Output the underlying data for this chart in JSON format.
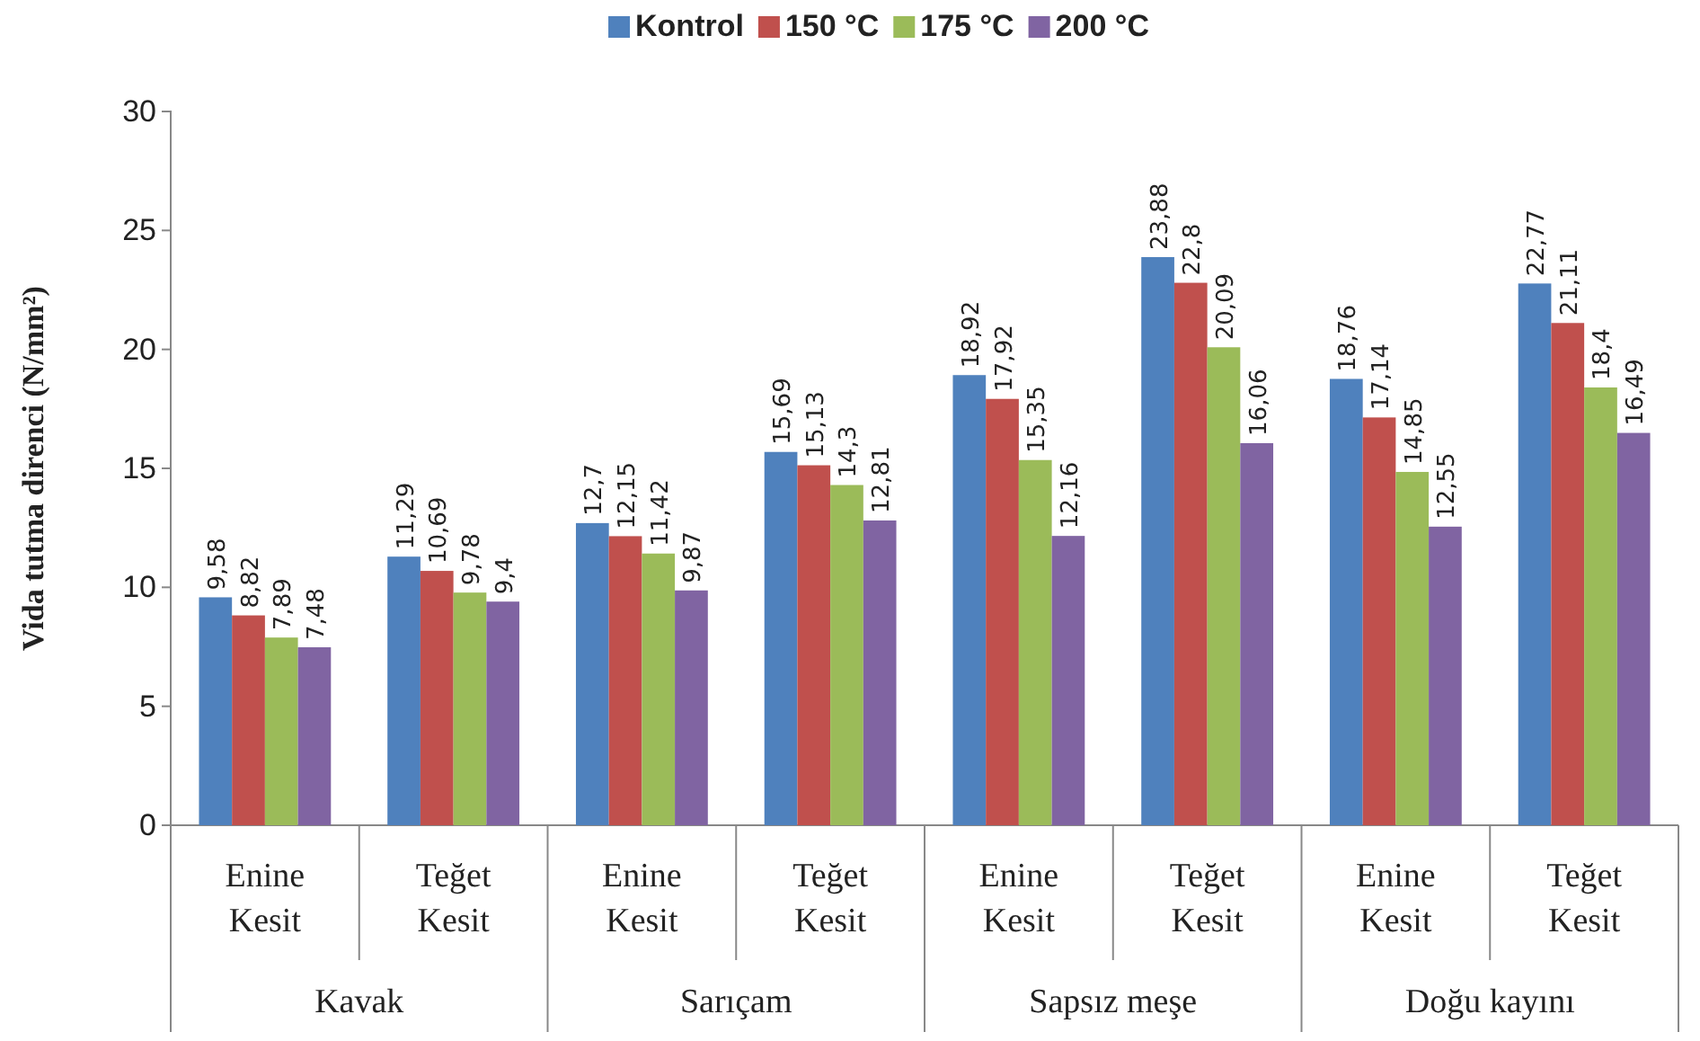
{
  "chart_data": {
    "type": "bar",
    "ylabel": "Vida tutma direnci (N/mm²)",
    "categories": [
      "Enine Kesit",
      "Teğet Kesit",
      "Enine Kesit",
      "Teğet Kesit",
      "Enine Kesit",
      "Teğet Kesit",
      "Enine Kesit",
      "Teğet Kesit"
    ],
    "annotations": [
      "Kavak",
      "Sarıçam",
      "Sapsız meşe",
      "Doğu kayını"
    ],
    "series": [
      {
        "name": "Kontrol",
        "color": "#4f81bd",
        "values": [
          9.58,
          11.29,
          12.7,
          15.69,
          18.92,
          23.88,
          18.76,
          22.77
        ],
        "value_labels": [
          "9,58",
          "11,29",
          "12,7",
          "15,69",
          "18,92",
          "23,88",
          "18,76",
          "22,77"
        ]
      },
      {
        "name": "150 °C",
        "color": "#c0504d",
        "values": [
          8.82,
          10.69,
          12.15,
          15.13,
          17.92,
          22.8,
          17.14,
          21.11
        ],
        "value_labels": [
          "8,82",
          "10,69",
          "12,15",
          "15,13",
          "17,92",
          "22,8",
          "17,14",
          "21,11"
        ]
      },
      {
        "name": "175 °C",
        "color": "#9bbb59",
        "values": [
          7.89,
          9.78,
          11.42,
          14.3,
          15.35,
          20.09,
          14.85,
          18.4
        ],
        "value_labels": [
          "7,89",
          "9,78",
          "11,42",
          "14,3",
          "15,35",
          "20,09",
          "14,85",
          "18,4"
        ]
      },
      {
        "name": "200 °C",
        "color": "#8064a2",
        "values": [
          7.48,
          9.4,
          9.87,
          12.81,
          12.16,
          16.06,
          12.55,
          16.49
        ],
        "value_labels": [
          "7,48",
          "9,4",
          "9,87",
          "12,81",
          "12,16",
          "16,06",
          "12,55",
          "16,49"
        ]
      }
    ],
    "ylim": [
      0,
      30
    ],
    "yticks": [
      0,
      5,
      10,
      15,
      20,
      25,
      30
    ],
    "legend": "top"
  }
}
